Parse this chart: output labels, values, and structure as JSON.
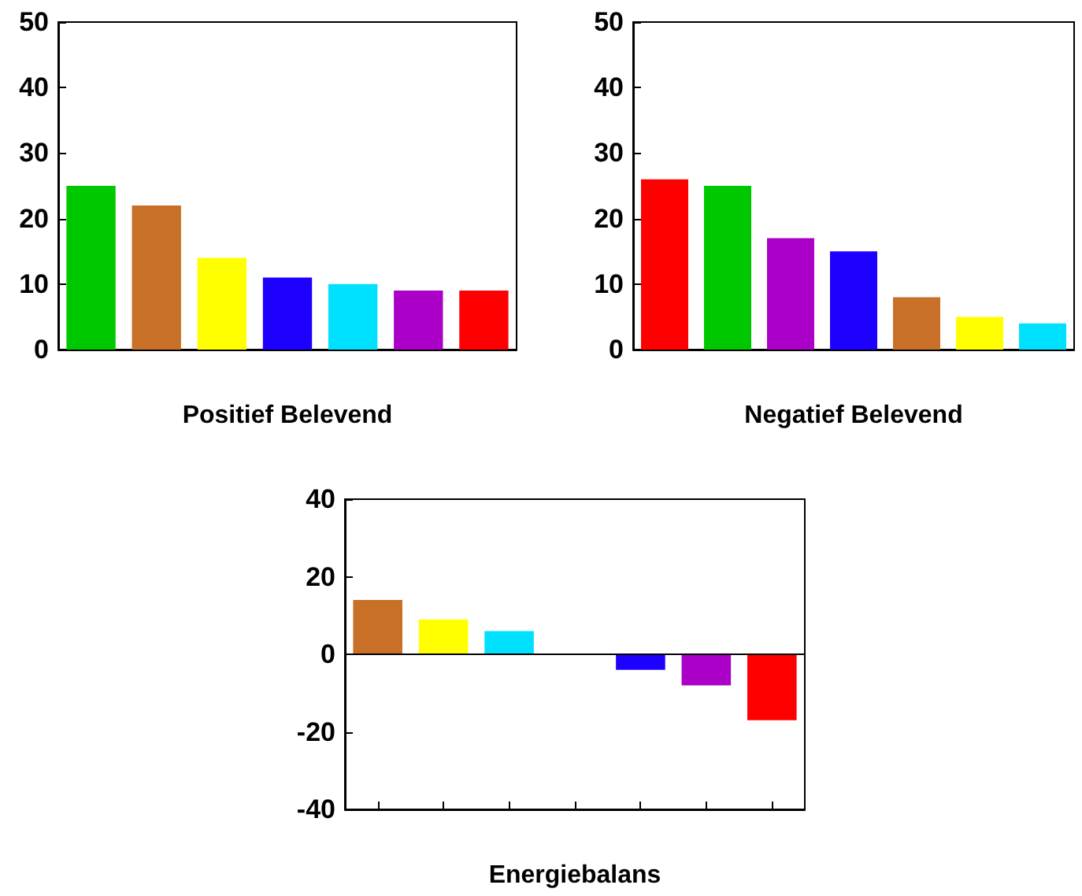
{
  "chart_data": [
    {
      "type": "bar",
      "xlabel": "Positief Belevend",
      "categories": [
        null,
        null,
        null,
        null,
        null,
        null,
        null
      ],
      "values": [
        25,
        22,
        14,
        11,
        10,
        9,
        9
      ],
      "colors": [
        "#00c800",
        "#c87028",
        "#ffff00",
        "#1e00ff",
        "#00e1ff",
        "#aa00c8",
        "#ff0000"
      ],
      "ylim": [
        0,
        50
      ],
      "yticks": [
        0,
        10,
        20,
        30,
        40,
        50
      ]
    },
    {
      "type": "bar",
      "xlabel": "Negatief Belevend",
      "categories": [
        null,
        null,
        null,
        null,
        null,
        null,
        null
      ],
      "values": [
        26,
        25,
        17,
        15,
        8,
        5,
        4
      ],
      "colors": [
        "#ff0000",
        "#00c800",
        "#aa00c8",
        "#1e00ff",
        "#c87028",
        "#ffff00",
        "#00e1ff"
      ],
      "ylim": [
        0,
        50
      ],
      "yticks": [
        0,
        10,
        20,
        30,
        40,
        50
      ]
    },
    {
      "type": "bar",
      "xlabel": "Energiebalans",
      "categories": [
        null,
        null,
        null,
        null,
        null,
        null,
        null
      ],
      "values": [
        14,
        9,
        6,
        0,
        -4,
        -8,
        -17
      ],
      "colors": [
        "#c87028",
        "#ffff00",
        "#00e1ff",
        "#00c800",
        "#1e00ff",
        "#aa00c8",
        "#ff0000"
      ],
      "ylim": [
        -40,
        40
      ],
      "yticks": [
        -40,
        -20,
        0,
        20,
        40
      ],
      "ref_lines": [
        {
          "axis": "y",
          "value": 0,
          "color": "#000000"
        }
      ]
    }
  ]
}
